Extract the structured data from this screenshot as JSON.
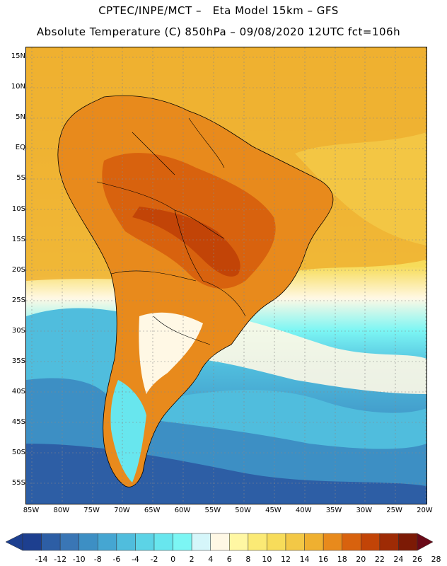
{
  "header": {
    "title_line1": "CPTEC/INPE/MCT –   Eta Model 15km – GFS",
    "title_line2": "Absolute Temperature (C) 850hPa – 09/08/2020 12UTC fct=106h"
  },
  "axes": {
    "lat_labels": [
      "15N",
      "10N",
      "5N",
      "EQ",
      "5S",
      "10S",
      "15S",
      "20S",
      "25S",
      "30S",
      "35S",
      "40S",
      "45S",
      "50S",
      "55S"
    ],
    "lon_labels": [
      "85W",
      "80W",
      "75W",
      "70W",
      "65W",
      "60W",
      "55W",
      "50W",
      "45W",
      "40W",
      "35W",
      "30W",
      "25W",
      "20W"
    ]
  },
  "colorbar": {
    "labels": [
      "-14",
      "-12",
      "-10",
      "-8",
      "-6",
      "-4",
      "-2",
      "0",
      "2",
      "4",
      "6",
      "8",
      "10",
      "12",
      "14",
      "16",
      "18",
      "20",
      "22",
      "24",
      "26",
      "28"
    ],
    "colors": [
      "#6e0f0f",
      "#1d3f8f",
      "#2d5ea5",
      "#3a76b5",
      "#3d8fc4",
      "#45a6d2",
      "#50bddd",
      "#5cd3e6",
      "#68e6ee",
      "#7cf6f4",
      "#d5f6fa",
      "#fff8e5",
      "#fff7a3",
      "#fbea75",
      "#f7dc5a",
      "#f3c846",
      "#efb030",
      "#e88a1c",
      "#d8620e",
      "#c24407",
      "#9e2b05",
      "#7c1a05",
      "#6a0a18"
    ]
  }
}
